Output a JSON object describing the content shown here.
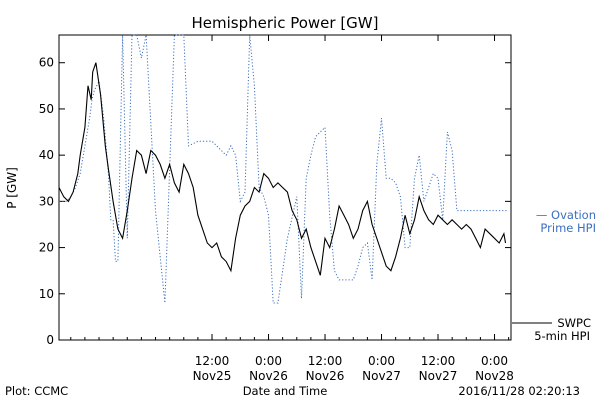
{
  "chart_data": {
    "type": "line",
    "title": "Hemispheric Power [GW]",
    "ylabel": "P [GW]",
    "xlabel": "Date and Time",
    "xlim": [
      "2016-11-24 03:30",
      "2016-11-28 03:30"
    ],
    "ylim": [
      0,
      66
    ],
    "y_ticks": [
      0,
      10,
      20,
      30,
      40,
      50,
      60
    ],
    "x_ticks": [
      {
        "t": "2016-11-25 12:00",
        "time": "12:00",
        "date": "Nov25"
      },
      {
        "t": "2016-11-26 00:00",
        "time": "0:00",
        "date": "Nov26"
      },
      {
        "t": "2016-11-26 12:00",
        "time": "12:00",
        "date": "Nov26"
      },
      {
        "t": "2016-11-27 00:00",
        "time": "0:00",
        "date": "Nov27"
      },
      {
        "t": "2016-11-27 12:00",
        "time": "12:00",
        "date": "Nov27"
      },
      {
        "t": "2016-11-28 00:00",
        "time": "0:00",
        "date": "Nov28"
      }
    ],
    "grid": false,
    "legend": [
      {
        "label_line1": "— Ovation",
        "label_line2": "Prime HPI",
        "color": "#3b6fbf",
        "placement": "right-middle"
      },
      {
        "label_line1": "SWPC",
        "label_line2": "5-min HPI",
        "color": "#000000",
        "placement": "bottom-right"
      }
    ],
    "series": [
      {
        "name": "SWPC 5-min HPI",
        "color": "#000000",
        "style": "solid",
        "x": [
          "2016-11-24 03:30",
          "2016-11-24 04:30",
          "2016-11-24 05:30",
          "2016-11-24 06:30",
          "2016-11-24 07:30",
          "2016-11-24 08:00",
          "2016-11-24 09:00",
          "2016-11-24 09:40",
          "2016-11-24 10:20",
          "2016-11-24 10:40",
          "2016-11-24 11:20",
          "2016-11-24 12:20",
          "2016-11-24 13:20",
          "2016-11-24 14:00",
          "2016-11-24 15:00",
          "2016-11-24 16:00",
          "2016-11-24 17:00",
          "2016-11-24 18:00",
          "2016-11-24 19:00",
          "2016-11-24 20:00",
          "2016-11-24 21:00",
          "2016-11-24 22:00",
          "2016-11-24 23:00",
          "2016-11-25 00:00",
          "2016-11-25 01:00",
          "2016-11-25 02:00",
          "2016-11-25 03:00",
          "2016-11-25 04:00",
          "2016-11-25 05:00",
          "2016-11-25 06:00",
          "2016-11-25 07:00",
          "2016-11-25 08:00",
          "2016-11-25 09:00",
          "2016-11-25 10:00",
          "2016-11-25 11:00",
          "2016-11-25 12:00",
          "2016-11-25 13:00",
          "2016-11-25 14:00",
          "2016-11-25 15:00",
          "2016-11-25 16:00",
          "2016-11-25 17:00",
          "2016-11-25 18:00",
          "2016-11-25 19:00",
          "2016-11-25 20:00",
          "2016-11-25 21:00",
          "2016-11-25 22:00",
          "2016-11-25 23:00",
          "2016-11-26 00:00",
          "2016-11-26 01:00",
          "2016-11-26 02:00",
          "2016-11-26 03:00",
          "2016-11-26 04:00",
          "2016-11-26 05:00",
          "2016-11-26 06:00",
          "2016-11-26 07:00",
          "2016-11-26 08:00",
          "2016-11-26 09:00",
          "2016-11-26 10:00",
          "2016-11-26 11:00",
          "2016-11-26 12:00",
          "2016-11-26 13:00",
          "2016-11-26 14:00",
          "2016-11-26 15:00",
          "2016-11-26 16:00",
          "2016-11-26 17:00",
          "2016-11-26 18:00",
          "2016-11-26 19:00",
          "2016-11-26 20:00",
          "2016-11-26 21:00",
          "2016-11-26 22:00",
          "2016-11-26 23:00",
          "2016-11-27 00:00",
          "2016-11-27 01:00",
          "2016-11-27 02:00",
          "2016-11-27 03:00",
          "2016-11-27 04:00",
          "2016-11-27 05:00",
          "2016-11-27 06:00",
          "2016-11-27 07:00",
          "2016-11-27 08:00",
          "2016-11-27 09:00",
          "2016-11-27 10:00",
          "2016-11-27 11:00",
          "2016-11-27 12:00",
          "2016-11-27 13:00",
          "2016-11-27 14:00",
          "2016-11-27 15:00",
          "2016-11-27 16:00",
          "2016-11-27 17:00",
          "2016-11-27 18:00",
          "2016-11-27 19:00",
          "2016-11-27 20:00",
          "2016-11-27 21:00",
          "2016-11-27 22:00",
          "2016-11-27 23:00",
          "2016-11-28 00:00",
          "2016-11-28 01:00",
          "2016-11-28 02:00",
          "2016-11-28 02:20"
        ],
        "y": [
          33,
          31,
          30,
          32,
          36,
          40,
          46,
          55,
          52,
          58,
          60,
          53,
          42,
          37,
          30,
          24,
          22,
          28,
          35,
          41,
          40,
          36,
          41,
          40,
          38,
          35,
          38,
          34,
          32,
          38,
          36,
          33,
          27,
          24,
          21,
          20,
          21,
          18,
          17,
          15,
          22,
          27,
          29,
          30,
          33,
          32,
          36,
          35,
          33,
          34,
          33,
          32,
          28,
          26,
          22,
          24,
          20,
          17,
          14,
          22,
          20,
          24,
          29,
          27,
          25,
          22,
          24,
          28,
          30,
          25,
          22,
          19,
          16,
          15,
          18,
          22,
          27,
          23,
          26,
          31,
          28,
          26,
          25,
          27,
          26,
          25,
          26,
          25,
          24,
          25,
          24,
          22,
          20,
          24,
          23,
          22,
          21,
          23,
          21
        ]
      },
      {
        "name": "Ovation Prime HPI",
        "color": "#3b6fbf",
        "style": "dotted",
        "x": [
          "2016-11-24 03:30",
          "2016-11-24 05:00",
          "2016-11-24 06:00",
          "2016-11-24 07:00",
          "2016-11-24 08:00",
          "2016-11-24 09:00",
          "2016-11-24 10:00",
          "2016-11-24 10:30",
          "2016-11-24 11:00",
          "2016-11-24 11:30",
          "2016-11-24 12:00",
          "2016-11-24 13:00",
          "2016-11-24 14:00",
          "2016-11-24 14:30",
          "2016-11-24 15:00",
          "2016-11-24 15:30",
          "2016-11-24 16:00",
          "2016-11-24 17:00",
          "2016-11-24 18:00",
          "2016-11-24 19:00",
          "2016-11-24 20:00",
          "2016-11-24 21:00",
          "2016-11-24 22:00",
          "2016-11-25 00:00",
          "2016-11-25 02:00",
          "2016-11-25 04:00",
          "2016-11-25 05:00",
          "2016-11-25 06:00",
          "2016-11-25 07:00",
          "2016-11-25 09:00",
          "2016-11-25 10:00",
          "2016-11-25 11:00",
          "2016-11-25 12:00",
          "2016-11-25 13:00",
          "2016-11-25 14:00",
          "2016-11-25 15:00",
          "2016-11-25 16:00",
          "2016-11-25 17:00",
          "2016-11-25 18:00",
          "2016-11-25 19:00",
          "2016-11-25 20:00",
          "2016-11-25 21:00",
          "2016-11-25 22:00",
          "2016-11-25 23:00",
          "2016-11-26 00:00",
          "2016-11-26 01:00",
          "2016-11-26 02:00",
          "2016-11-26 04:00",
          "2016-11-26 06:00",
          "2016-11-26 07:00",
          "2016-11-26 08:00",
          "2016-11-26 09:00",
          "2016-11-26 10:00",
          "2016-11-26 11:00",
          "2016-11-26 12:00",
          "2016-11-26 13:00",
          "2016-11-26 14:00",
          "2016-11-26 15:00",
          "2016-11-26 16:00",
          "2016-11-26 17:00",
          "2016-11-26 18:00",
          "2016-11-26 19:00",
          "2016-11-26 20:00",
          "2016-11-26 21:00",
          "2016-11-26 22:00",
          "2016-11-26 23:00",
          "2016-11-27 00:00",
          "2016-11-27 01:00",
          "2016-11-27 02:00",
          "2016-11-27 03:00",
          "2016-11-27 04:00",
          "2016-11-27 05:00",
          "2016-11-27 06:00",
          "2016-11-27 07:00",
          "2016-11-27 08:00",
          "2016-11-27 09:00",
          "2016-11-27 10:00",
          "2016-11-27 11:00",
          "2016-11-27 12:00",
          "2016-11-27 13:00",
          "2016-11-27 14:00",
          "2016-11-27 15:00",
          "2016-11-27 16:00",
          "2016-11-27 17:00",
          "2016-11-27 18:00",
          "2016-11-27 19:00",
          "2016-11-27 20:00",
          "2016-11-27 21:00",
          "2016-11-27 22:00",
          "2016-11-27 23:00",
          "2016-11-28 00:00",
          "2016-11-28 01:00",
          "2016-11-28 02:00",
          "2016-11-28 03:00"
        ],
        "y": [
          30,
          30,
          31,
          33,
          36,
          42,
          48,
          52,
          54,
          55,
          56,
          48,
          36,
          26,
          26,
          17,
          17,
          66,
          22,
          66,
          66,
          61,
          66,
          28,
          8,
          66,
          66,
          66,
          42,
          43,
          43,
          43,
          43,
          42,
          41,
          40,
          42,
          40,
          30,
          32,
          66,
          55,
          33,
          31,
          27,
          8,
          8,
          22,
          31,
          9,
          35,
          40,
          44,
          45,
          46,
          27,
          15,
          13,
          13,
          13,
          13,
          16,
          20,
          21,
          13,
          38,
          48,
          35,
          35,
          34,
          31,
          20,
          20,
          35,
          40,
          30,
          33,
          36,
          35,
          26,
          45,
          41,
          28,
          28,
          28,
          28,
          28,
          28,
          28,
          28,
          28,
          28,
          28,
          28
        ]
      }
    ]
  },
  "footer": {
    "left": "Plot: CCMC",
    "right": "2016/11/28 02:20:13"
  }
}
